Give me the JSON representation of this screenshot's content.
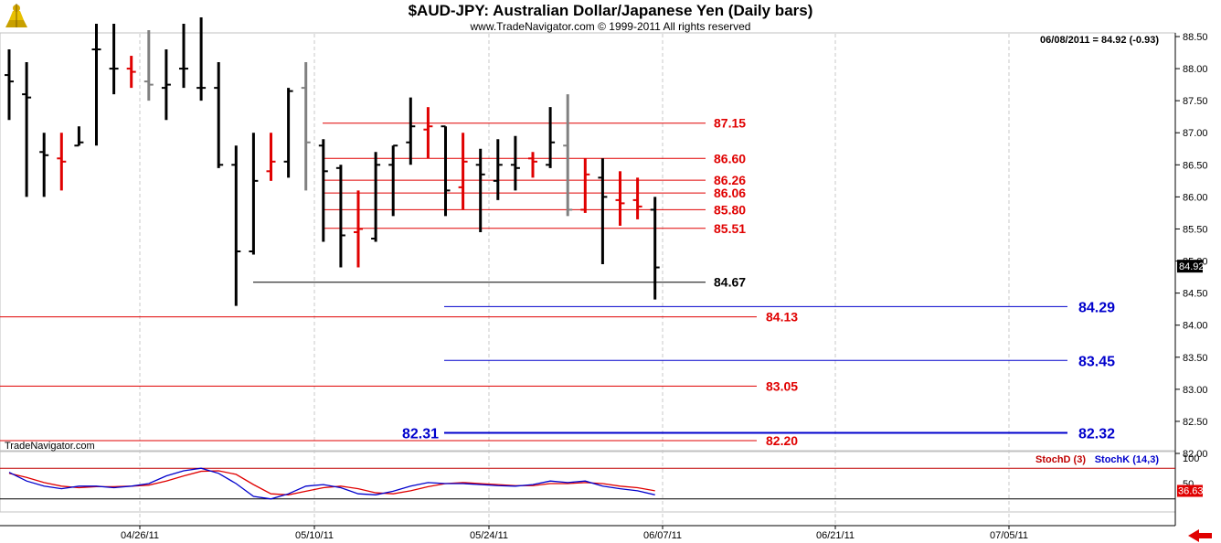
{
  "chart_data": {
    "type": "ohlc",
    "title": "$AUD-JPY:  Australian Dollar/Japanese Yen  (Daily bars)",
    "subtitle": "www.TradeNavigator.com © 1999-2011 All rights reserved",
    "quote_box": "06/08/2011 = 84.92 (-0.93)",
    "last_price_label": "84.92",
    "watermark": "TradeNavigator.com",
    "ylim": [
      82.0,
      88.5
    ],
    "y_ticks": [
      "88.50",
      "88.00",
      "87.50",
      "87.00",
      "86.50",
      "86.00",
      "85.50",
      "85.00",
      "84.50",
      "84.00",
      "83.50",
      "83.00",
      "82.50",
      "82.00"
    ],
    "x_ticks": [
      "04/26/11",
      "05/10/11",
      "05/24/11",
      "06/07/11",
      "06/21/11",
      "07/05/11"
    ],
    "colors": {
      "up": "#000000",
      "down": "#e00000",
      "neutral": "#808080",
      "blue": "#0000cc",
      "red": "#e00000"
    },
    "bars": [
      {
        "o": 87.9,
        "h": 88.3,
        "l": 87.2,
        "c": 87.8,
        "col": "up"
      },
      {
        "o": 87.6,
        "h": 88.1,
        "l": 86.0,
        "c": 87.55,
        "col": "up"
      },
      {
        "o": 86.7,
        "h": 87.0,
        "l": 86.0,
        "c": 86.65,
        "col": "up"
      },
      {
        "o": 86.6,
        "h": 87.0,
        "l": 86.1,
        "c": 86.55,
        "col": "down"
      },
      {
        "o": 86.8,
        "h": 87.1,
        "l": 86.8,
        "c": 86.85,
        "col": "up"
      },
      {
        "o": 88.3,
        "h": 88.7,
        "l": 86.8,
        "c": 88.3,
        "col": "up"
      },
      {
        "o": 88.0,
        "h": 88.7,
        "l": 87.6,
        "c": 88.0,
        "col": "up"
      },
      {
        "o": 88.0,
        "h": 88.2,
        "l": 87.7,
        "c": 87.95,
        "col": "down"
      },
      {
        "o": 87.8,
        "h": 88.6,
        "l": 87.5,
        "c": 87.75,
        "col": "neutral"
      },
      {
        "o": 87.7,
        "h": 88.3,
        "l": 87.2,
        "c": 87.75,
        "col": "up"
      },
      {
        "o": 88.0,
        "h": 88.7,
        "l": 87.7,
        "c": 88.0,
        "col": "up"
      },
      {
        "o": 87.7,
        "h": 88.8,
        "l": 87.5,
        "c": 87.7,
        "col": "up"
      },
      {
        "o": 87.7,
        "h": 88.1,
        "l": 86.45,
        "c": 86.5,
        "col": "up"
      },
      {
        "o": 86.5,
        "h": 86.8,
        "l": 84.3,
        "c": 85.15,
        "col": "up"
      },
      {
        "o": 85.15,
        "h": 87.0,
        "l": 85.1,
        "c": 86.25,
        "col": "up"
      },
      {
        "o": 86.4,
        "h": 87.0,
        "l": 86.25,
        "c": 86.55,
        "col": "down"
      },
      {
        "o": 86.55,
        "h": 87.7,
        "l": 86.3,
        "c": 87.65,
        "col": "up"
      },
      {
        "o": 87.7,
        "h": 88.1,
        "l": 86.1,
        "c": 86.85,
        "col": "neutral"
      },
      {
        "o": 86.8,
        "h": 86.9,
        "l": 85.3,
        "c": 86.4,
        "col": "up"
      },
      {
        "o": 86.45,
        "h": 86.5,
        "l": 84.9,
        "c": 85.4,
        "col": "up"
      },
      {
        "o": 85.45,
        "h": 86.1,
        "l": 84.9,
        "c": 85.5,
        "col": "down"
      },
      {
        "o": 85.35,
        "h": 86.7,
        "l": 85.3,
        "c": 86.5,
        "col": "up"
      },
      {
        "o": 86.5,
        "h": 86.8,
        "l": 85.7,
        "c": 86.8,
        "col": "up"
      },
      {
        "o": 86.85,
        "h": 87.55,
        "l": 86.5,
        "c": 87.1,
        "col": "up"
      },
      {
        "o": 87.05,
        "h": 87.4,
        "l": 86.6,
        "c": 87.1,
        "col": "down"
      },
      {
        "o": 87.1,
        "h": 87.1,
        "l": 85.7,
        "c": 86.1,
        "col": "up"
      },
      {
        "o": 86.15,
        "h": 87.0,
        "l": 85.8,
        "c": 86.55,
        "col": "down"
      },
      {
        "o": 86.5,
        "h": 86.75,
        "l": 85.45,
        "c": 86.35,
        "col": "up"
      },
      {
        "o": 86.25,
        "h": 86.9,
        "l": 85.95,
        "c": 86.5,
        "col": "up"
      },
      {
        "o": 86.5,
        "h": 86.95,
        "l": 86.1,
        "c": 86.45,
        "col": "up"
      },
      {
        "o": 86.6,
        "h": 86.7,
        "l": 86.3,
        "c": 86.55,
        "col": "down"
      },
      {
        "o": 86.5,
        "h": 87.4,
        "l": 86.45,
        "c": 86.85,
        "col": "up"
      },
      {
        "o": 86.8,
        "h": 87.6,
        "l": 85.7,
        "c": 85.8,
        "col": "neutral"
      },
      {
        "o": 85.8,
        "h": 86.6,
        "l": 85.75,
        "c": 86.35,
        "col": "down"
      },
      {
        "o": 86.3,
        "h": 86.6,
        "l": 84.95,
        "c": 86.0,
        "col": "up"
      },
      {
        "o": 85.95,
        "h": 86.4,
        "l": 85.55,
        "c": 85.9,
        "col": "down"
      },
      {
        "o": 85.95,
        "h": 86.3,
        "l": 85.65,
        "c": 85.85,
        "col": "down"
      },
      {
        "o": 85.8,
        "h": 86.0,
        "l": 84.4,
        "c": 84.9,
        "col": "up"
      }
    ],
    "red_lines": [
      {
        "value": 87.15,
        "label": "87.15"
      },
      {
        "value": 86.6,
        "label": "86.60"
      },
      {
        "value": 86.26,
        "label": "86.26"
      },
      {
        "value": 86.06,
        "label": "86.06"
      },
      {
        "value": 85.8,
        "label": "85.80"
      },
      {
        "value": 85.51,
        "label": "85.51"
      }
    ],
    "long_red_lines": [
      {
        "value": 84.13,
        "label": "84.13"
      },
      {
        "value": 83.05,
        "label": "83.05"
      },
      {
        "value": 82.2,
        "label": "82.20"
      }
    ],
    "black_line": {
      "value": 84.67,
      "label": "84.67"
    },
    "blue_lines": [
      {
        "value": 84.29,
        "label": "84.29"
      },
      {
        "value": 83.45,
        "label": "83.45"
      },
      {
        "value": 82.32,
        "label": "82.32",
        "left_label": "82.31"
      }
    ],
    "stoch": {
      "label_d": "StochD (3)",
      "label_k": "StochK (14,3)",
      "tick_100": "100",
      "tick_50": "50",
      "readout_d": "36.63",
      "k_values": [
        72,
        55,
        45,
        40,
        45,
        45,
        42,
        45,
        50,
        65,
        75,
        80,
        70,
        50,
        25,
        20,
        30,
        45,
        48,
        42,
        30,
        28,
        35,
        45,
        52,
        50,
        50,
        48,
        46,
        45,
        48,
        55,
        52,
        55,
        45,
        40,
        36,
        28
      ],
      "d_values": [
        70,
        62,
        52,
        45,
        42,
        44,
        44,
        45,
        47,
        55,
        65,
        74,
        75,
        68,
        48,
        30,
        28,
        35,
        42,
        45,
        40,
        32,
        30,
        36,
        44,
        50,
        52,
        50,
        48,
        46,
        46,
        50,
        50,
        52,
        50,
        45,
        42,
        36
      ]
    }
  }
}
